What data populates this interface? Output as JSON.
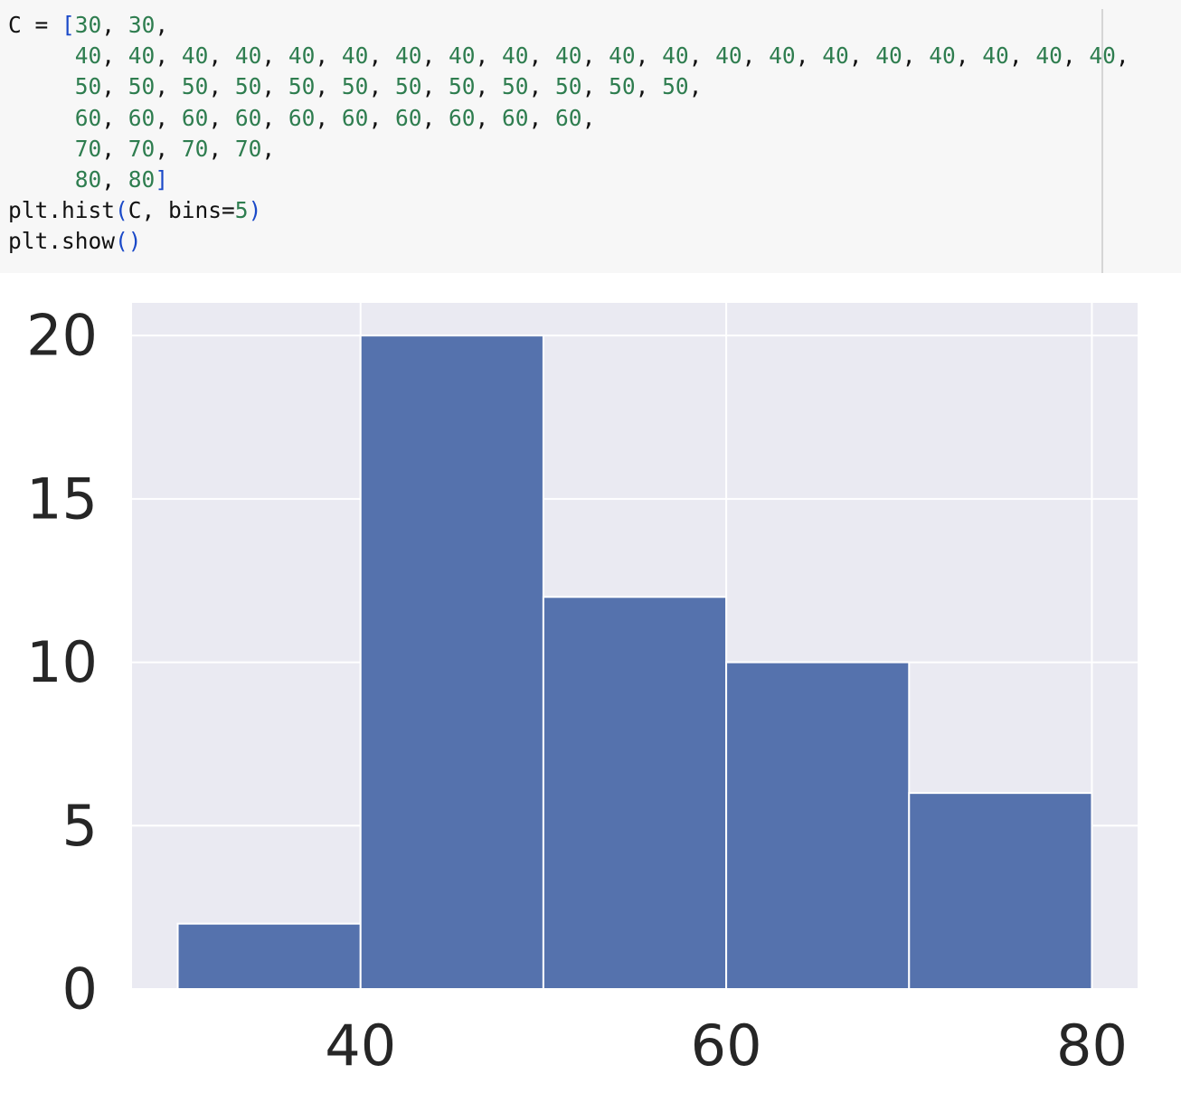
{
  "code_cell": {
    "lines": [
      [
        {
          "t": "C = ",
          "k": "pl"
        },
        {
          "t": "[",
          "k": "br"
        },
        {
          "t": "30",
          "k": "num"
        },
        {
          "t": ", ",
          "k": "pl"
        },
        {
          "t": "30",
          "k": "num"
        },
        {
          "t": ",",
          "k": "pl"
        }
      ],
      [
        {
          "t": "     ",
          "k": "pl"
        },
        {
          "t": "40",
          "k": "num"
        },
        {
          "t": ", ",
          "k": "pl"
        },
        {
          "t": "40",
          "k": "num"
        },
        {
          "t": ", ",
          "k": "pl"
        },
        {
          "t": "40",
          "k": "num"
        },
        {
          "t": ", ",
          "k": "pl"
        },
        {
          "t": "40",
          "k": "num"
        },
        {
          "t": ", ",
          "k": "pl"
        },
        {
          "t": "40",
          "k": "num"
        },
        {
          "t": ", ",
          "k": "pl"
        },
        {
          "t": "40",
          "k": "num"
        },
        {
          "t": ", ",
          "k": "pl"
        },
        {
          "t": "40",
          "k": "num"
        },
        {
          "t": ", ",
          "k": "pl"
        },
        {
          "t": "40",
          "k": "num"
        },
        {
          "t": ", ",
          "k": "pl"
        },
        {
          "t": "40",
          "k": "num"
        },
        {
          "t": ", ",
          "k": "pl"
        },
        {
          "t": "40",
          "k": "num"
        },
        {
          "t": ", ",
          "k": "pl"
        },
        {
          "t": "40",
          "k": "num"
        },
        {
          "t": ", ",
          "k": "pl"
        },
        {
          "t": "40",
          "k": "num"
        },
        {
          "t": ", ",
          "k": "pl"
        },
        {
          "t": "40",
          "k": "num"
        },
        {
          "t": ", ",
          "k": "pl"
        },
        {
          "t": "40",
          "k": "num"
        },
        {
          "t": ", ",
          "k": "pl"
        },
        {
          "t": "40",
          "k": "num"
        },
        {
          "t": ", ",
          "k": "pl"
        },
        {
          "t": "40",
          "k": "num"
        },
        {
          "t": ", ",
          "k": "pl"
        },
        {
          "t": "40",
          "k": "num"
        },
        {
          "t": ", ",
          "k": "pl"
        },
        {
          "t": "40",
          "k": "num"
        },
        {
          "t": ", ",
          "k": "pl"
        },
        {
          "t": "40",
          "k": "num"
        },
        {
          "t": ", ",
          "k": "pl"
        },
        {
          "t": "40",
          "k": "num"
        },
        {
          "t": ",",
          "k": "pl"
        }
      ],
      [
        {
          "t": "     ",
          "k": "pl"
        },
        {
          "t": "50",
          "k": "num"
        },
        {
          "t": ", ",
          "k": "pl"
        },
        {
          "t": "50",
          "k": "num"
        },
        {
          "t": ", ",
          "k": "pl"
        },
        {
          "t": "50",
          "k": "num"
        },
        {
          "t": ", ",
          "k": "pl"
        },
        {
          "t": "50",
          "k": "num"
        },
        {
          "t": ", ",
          "k": "pl"
        },
        {
          "t": "50",
          "k": "num"
        },
        {
          "t": ", ",
          "k": "pl"
        },
        {
          "t": "50",
          "k": "num"
        },
        {
          "t": ", ",
          "k": "pl"
        },
        {
          "t": "50",
          "k": "num"
        },
        {
          "t": ", ",
          "k": "pl"
        },
        {
          "t": "50",
          "k": "num"
        },
        {
          "t": ", ",
          "k": "pl"
        },
        {
          "t": "50",
          "k": "num"
        },
        {
          "t": ", ",
          "k": "pl"
        },
        {
          "t": "50",
          "k": "num"
        },
        {
          "t": ", ",
          "k": "pl"
        },
        {
          "t": "50",
          "k": "num"
        },
        {
          "t": ", ",
          "k": "pl"
        },
        {
          "t": "50",
          "k": "num"
        },
        {
          "t": ",",
          "k": "pl"
        }
      ],
      [
        {
          "t": "     ",
          "k": "pl"
        },
        {
          "t": "60",
          "k": "num"
        },
        {
          "t": ", ",
          "k": "pl"
        },
        {
          "t": "60",
          "k": "num"
        },
        {
          "t": ", ",
          "k": "pl"
        },
        {
          "t": "60",
          "k": "num"
        },
        {
          "t": ", ",
          "k": "pl"
        },
        {
          "t": "60",
          "k": "num"
        },
        {
          "t": ", ",
          "k": "pl"
        },
        {
          "t": "60",
          "k": "num"
        },
        {
          "t": ", ",
          "k": "pl"
        },
        {
          "t": "60",
          "k": "num"
        },
        {
          "t": ", ",
          "k": "pl"
        },
        {
          "t": "60",
          "k": "num"
        },
        {
          "t": ", ",
          "k": "pl"
        },
        {
          "t": "60",
          "k": "num"
        },
        {
          "t": ", ",
          "k": "pl"
        },
        {
          "t": "60",
          "k": "num"
        },
        {
          "t": ", ",
          "k": "pl"
        },
        {
          "t": "60",
          "k": "num"
        },
        {
          "t": ",",
          "k": "pl"
        }
      ],
      [
        {
          "t": "     ",
          "k": "pl"
        },
        {
          "t": "70",
          "k": "num"
        },
        {
          "t": ", ",
          "k": "pl"
        },
        {
          "t": "70",
          "k": "num"
        },
        {
          "t": ", ",
          "k": "pl"
        },
        {
          "t": "70",
          "k": "num"
        },
        {
          "t": ", ",
          "k": "pl"
        },
        {
          "t": "70",
          "k": "num"
        },
        {
          "t": ",",
          "k": "pl"
        }
      ],
      [
        {
          "t": "     ",
          "k": "pl"
        },
        {
          "t": "80",
          "k": "num"
        },
        {
          "t": ", ",
          "k": "pl"
        },
        {
          "t": "80",
          "k": "num"
        },
        {
          "t": "]",
          "k": "br"
        }
      ],
      [
        {
          "t": "plt.hist",
          "k": "pl"
        },
        {
          "t": "(",
          "k": "br"
        },
        {
          "t": "C, bins=",
          "k": "pl"
        },
        {
          "t": "5",
          "k": "num"
        },
        {
          "t": ")",
          "k": "br"
        }
      ],
      [
        {
          "t": "plt.show",
          "k": "pl"
        },
        {
          "t": "()",
          "k": "br"
        }
      ]
    ]
  },
  "chart_data": {
    "type": "bar",
    "style": "histogram",
    "bin_edges": [
      30,
      40,
      50,
      60,
      70,
      80
    ],
    "values": [
      2,
      20,
      12,
      10,
      6
    ],
    "xlim": [
      27.5,
      82.5
    ],
    "ylim": [
      0,
      21
    ],
    "xticks": [
      40,
      60,
      80
    ],
    "yticks": [
      0,
      5,
      10,
      15,
      20
    ],
    "xtick_labels": [
      "40",
      "60",
      "80"
    ],
    "ytick_labels": [
      "0",
      "5",
      "10",
      "15",
      "20"
    ],
    "grid": true,
    "title": "",
    "xlabel": "",
    "ylabel": "",
    "colors": {
      "bar": "#5572ad",
      "plot_background": "#eaeaf2",
      "grid": "#ffffff",
      "tick_text": "#262626"
    }
  }
}
